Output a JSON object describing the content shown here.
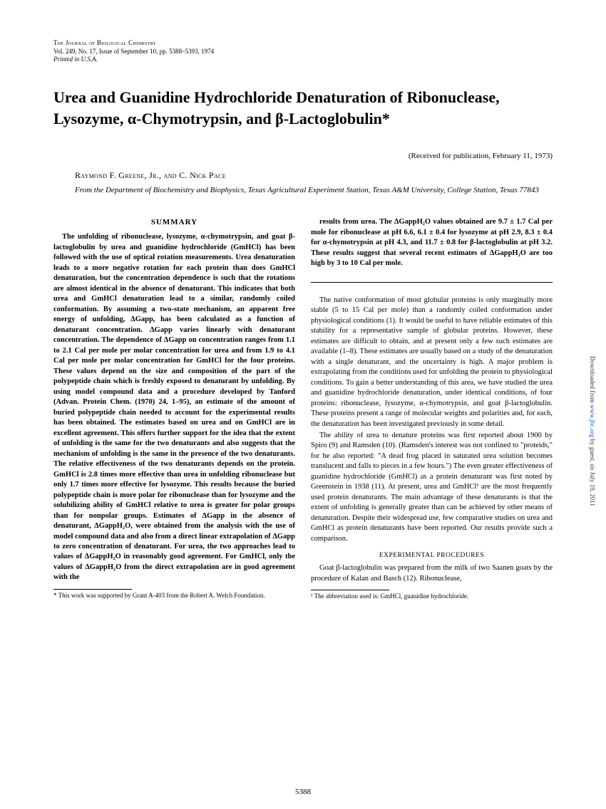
{
  "journal": {
    "line1": "The Journal of Biological Chemistry",
    "line2": "Vol. 249, No. 17, Issue of September 10, pp. 5388–5393, 1974",
    "line3": "Printed in U.S.A."
  },
  "title": "Urea and Guanidine Hydrochloride Denaturation of Ribonuclease, Lysozyme, α-Chymotrypsin, and β-Lactoglobulin*",
  "received": "(Received for publication, February 11, 1973)",
  "authors": "Raymond F. Greene, Jr., and C. Nick Pace",
  "affiliation": "From the Department of Biochemistry and Biophysics, Texas Agricultural Experiment Station, Texas A&M University, College Station, Texas 77843",
  "summary_head": "SUMMARY",
  "summary": "The unfolding of ribonuclease, lysozyme, α-chymotrypsin, and goat β-lactoglobulin by urea and guanidine hydrochloride (GmHCl) has been followed with the use of optical rotation measurements. Urea denaturation leads to a more negative rotation for each protein than does GmHCl denaturation, but the concentration dependence is such that the rotations are almost identical in the absence of denaturant. This indicates that both urea and GmHCl denaturation lead to a similar, randomly coiled conformation. By assuming a two-state mechanism, an apparent free energy of unfolding, ΔGapp, has been calculated as a function of denaturant concentration. ΔGapp varies linearly with denaturant concentration. The dependence of ΔGapp on concentration ranges from 1.1 to 2.1 Cal per mole per molar concentration for urea and from 1.9 to 4.1 Cal per mole per molar concentration for GmHCl for the four proteins. These values depend on the size and composition of the part of the polypeptide chain which is freshly exposed to denaturant by unfolding. By using model compound data and a procedure developed by Tanford (Advan. Protein Chem. (1970) 24, 1–95), an estimate of the amount of buried polypeptide chain needed to account for the experimental results has been obtained. The estimates based on urea and on GmHCl are in excellent agreement. This offers further support for the idea that the extent of unfolding is the same for the two denaturants and also suggests that the mechanism of unfolding is the same in the presence of the two denaturants. The relative effectiveness of the two denaturants depends on the protein. GmHCl is 2.8 times more effective than urea in unfolding ribonuclease but only 1.7 times more effective for lysozyme. This results because the buried polypeptide chain is more polar for ribonuclease than for lysozyme and the solubilizing ability of GmHCl relative to urea is greater for polar groups than for nonpolar groups. Estimates of ΔGapp in the absence of denaturant, ΔGappH₂O, were obtained from the analysis with the use of model compound data and also from a direct linear extrapolation of ΔGapp to zero concentration of denaturant. For urea, the two approaches lead to values of ΔGappH₂O in reasonably good agreement. For GmHCl, only the values of ΔGappH₂O from the direct extrapolation are in good agreement with the ",
  "summary_cont": "results from urea. The ΔGappH₂O values obtained are 9.7 ± 1.7 Cal per mole for ribonuclease at pH 6.6, 6.1 ± 0.4 for lysozyme at pH 2.9, 8.3 ± 0.4 for α-chymotrypsin at pH 4.3, and 11.7 ± 0.8 for β-lactoglobulin at pH 3.2. These results suggest that several recent estimates of ΔGappH₂O are too high by 3 to 10 Cal per mole.",
  "intro_p1": "The native conformation of most globular proteins is only marginally more stable (5 to 15 Cal per mole) than a randomly coiled conformation under physiological conditions (1). It would be useful to have reliable estimates of this stability for a representative sample of globular proteins. However, these estimates are difficult to obtain, and at present only a few such estimates are available (1–8). These estimates are usually based on a study of the denaturation with a single denaturant, and the uncertainty is high. A major problem is extrapolating from the conditions used for unfolding the protein to physiological conditions. To gain a better understanding of this area, we have studied the urea and guanidine hydrochloride denaturation, under identical conditions, of four proteins: ribonuclease, lysozyme, α-chymotrypsin, and goat β-lactoglobulin. These proteins present a range of molecular weights and polarities and, for each, the denaturation has been investigated previously in some detail.",
  "intro_p2": "The ability of urea to denature proteins was first reported about 1900 by Spiro (9) and Ramsden (10). (Ramsden's interest was not confined to \"proteids,\" for he also reported: \"A dead frog placed in saturated urea solution becomes translucent and falls to pieces in a few hours.\") The even greater effectiveness of guanidine hydrochloride (GmHCl) as a protein denaturant was first noted by Greenstein in 1938 (11). At present, urea and GmHCl¹ are the most frequently used protein denaturants. The main advantage of these denaturants is that the extent of unfolding is generally greater than can be achieved by other means of denaturation. Despite their widespread use, few comparative studies on urea and GmHCl as protein denaturants have been reported. Our results provide such a comparison.",
  "exp_head": "EXPERIMENTAL PROCEDURES",
  "exp_p1": "Goat β-lactoglobulin was prepared from the milk of two Saanen goats by the procedure of Kalan and Basch (12). Ribonuclease,",
  "footnote_left": "* This work was supported by Grant A-403 from the Robert A. Welch Foundation.",
  "footnote_right": "¹ The abbreviation used is: GmHCl, guanidine hydrochloride.",
  "page_number": "5388",
  "side_note_pre": "Downloaded from ",
  "side_note_link": "www.jbc.org",
  "side_note_post": " by guest, on July 19, 2011"
}
